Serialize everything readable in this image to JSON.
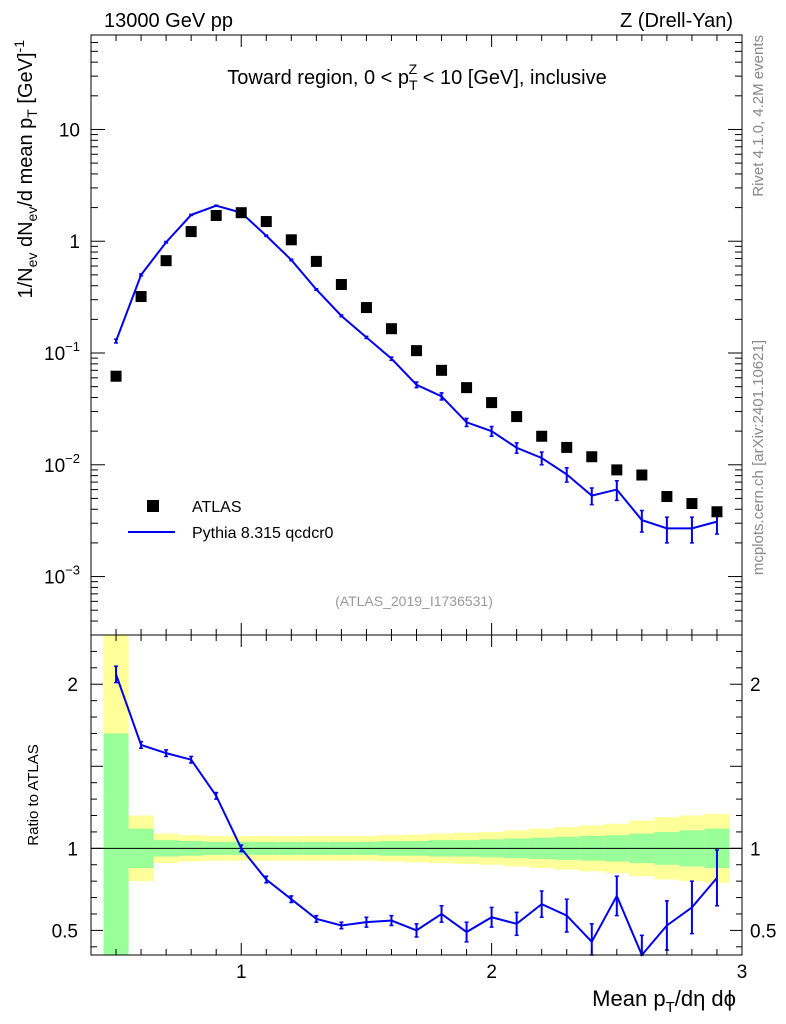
{
  "header": {
    "left": "13000 GeV pp",
    "right": "Z (Drell-Yan)"
  },
  "side_labels": {
    "rivet": "Rivet 4.1.0,  4.2M events",
    "mcplots": "mcplots.cern.ch [arXiv:2401.10621]"
  },
  "chart_data": {
    "type": "scatter",
    "title": "Toward region, 0 < p_T^Z < 10 [GeV], inclusive",
    "title_parts": {
      "pre": "Toward region, 0 < p",
      "sub": "T",
      "sup": "Z",
      "post": " < 10 [GeV], inclusive"
    },
    "analysis_tag": "(ATLAS_2019_I1736531)",
    "xlabel": "Mean p_T/dη dϕ",
    "xlabel_parts": {
      "pre": "Mean p",
      "sub": "T",
      "post": "/dη dϕ"
    },
    "ylabel": "1/N_ev dN_ev/d mean p_T [GeV]^-1",
    "ylabel_parts": {
      "a": "1/N",
      "a_sub": "ev",
      "b": " dN",
      "b_sub": "ev",
      "c": "/d mean p",
      "c_sub": "T",
      "d": " [GeV]",
      "d_sup": "-1"
    },
    "ratio_ylabel": "Ratio to ATLAS",
    "xlim": [
      0.4,
      3.0
    ],
    "ylim": [
      0.0003,
      70
    ],
    "yscale": "log",
    "ratio_ylim": [
      0.35,
      2.3
    ],
    "x_ticks": [
      1,
      2,
      3
    ],
    "x_tick_labels": [
      "1",
      "2",
      "3"
    ],
    "y_ticks": [
      0.001,
      0.01,
      0.1,
      1,
      10
    ],
    "y_tick_labels": [
      {
        "base": "10",
        "exp": "−3"
      },
      {
        "base": "10",
        "exp": "−2"
      },
      {
        "base": "10",
        "exp": "−1"
      },
      {
        "base": "1",
        "exp": ""
      },
      {
        "base": "10",
        "exp": ""
      }
    ],
    "ratio_ticks": [
      0.5,
      1,
      2
    ],
    "ratio_tick_labels": [
      "0.5",
      "1",
      "2"
    ],
    "legend": {
      "position": "lower-left",
      "entries": [
        "ATLAS",
        "Pythia 8.315 qcdcr0"
      ]
    },
    "series": [
      {
        "name": "ATLAS",
        "color": "#000000",
        "marker": "square",
        "x": [
          0.5,
          0.6,
          0.7,
          0.8,
          0.9,
          1.0,
          1.1,
          1.2,
          1.3,
          1.4,
          1.5,
          1.6,
          1.7,
          1.8,
          1.9,
          2.0,
          2.1,
          2.2,
          2.3,
          2.4,
          2.5,
          2.6,
          2.7,
          2.8,
          2.9
        ],
        "y": [
          0.062,
          0.32,
          0.67,
          1.22,
          1.7,
          1.8,
          1.5,
          1.03,
          0.66,
          0.41,
          0.255,
          0.165,
          0.105,
          0.07,
          0.049,
          0.036,
          0.027,
          0.018,
          0.0143,
          0.0118,
          0.009,
          0.0081,
          0.0052,
          0.0045,
          0.0038
        ]
      },
      {
        "name": "Pythia 8.315 qcdcr0",
        "color": "#0000ee",
        "marker": "line",
        "x": [
          0.5,
          0.6,
          0.7,
          0.8,
          0.9,
          1.0,
          1.1,
          1.2,
          1.3,
          1.4,
          1.5,
          1.6,
          1.7,
          1.8,
          1.9,
          2.0,
          2.1,
          2.2,
          2.3,
          2.4,
          2.5,
          2.6,
          2.7,
          2.8,
          2.9
        ],
        "y": [
          0.128,
          0.5,
          0.98,
          1.72,
          2.08,
          1.8,
          1.12,
          0.68,
          0.37,
          0.215,
          0.138,
          0.089,
          0.052,
          0.041,
          0.024,
          0.02,
          0.0142,
          0.0115,
          0.0082,
          0.0053,
          0.006,
          0.0032,
          0.0027,
          0.0027,
          0.0031
        ],
        "yerr": [
          0.005,
          0.01,
          0.015,
          0.02,
          0.02,
          0.02,
          0.015,
          0.01,
          0.006,
          0.004,
          0.003,
          0.003,
          0.003,
          0.003,
          0.002,
          0.002,
          0.0015,
          0.0015,
          0.0012,
          0.0009,
          0.0012,
          0.0007,
          0.0007,
          0.0007,
          0.0007
        ],
        "ratio": [
          2.06,
          1.63,
          1.58,
          1.54,
          1.32,
          1.0,
          0.81,
          0.69,
          0.57,
          0.53,
          0.55,
          0.56,
          0.5,
          0.6,
          0.49,
          0.58,
          0.54,
          0.66,
          0.59,
          0.43,
          0.71,
          0.33,
          0.53,
          0.64,
          0.82
        ],
        "ratio_err": [
          0.05,
          0.02,
          0.02,
          0.02,
          0.02,
          0.02,
          0.02,
          0.02,
          0.02,
          0.02,
          0.03,
          0.03,
          0.04,
          0.05,
          0.06,
          0.06,
          0.07,
          0.08,
          0.1,
          0.11,
          0.12,
          0.14,
          0.15,
          0.16,
          0.17
        ]
      }
    ],
    "ratio_bands": {
      "x_edges": [
        0.45,
        0.55,
        0.65,
        0.75,
        0.85,
        0.95,
        1.05,
        1.15,
        1.25,
        1.35,
        1.45,
        1.55,
        1.65,
        1.75,
        1.85,
        1.95,
        2.05,
        2.15,
        2.25,
        2.35,
        2.45,
        2.55,
        2.65,
        2.75,
        2.85,
        2.95
      ],
      "inner_color": "#99ff99",
      "outer_color": "#ffff99",
      "inner_half": [
        0.7,
        0.12,
        0.05,
        0.045,
        0.04,
        0.04,
        0.04,
        0.04,
        0.04,
        0.04,
        0.04,
        0.045,
        0.045,
        0.05,
        0.05,
        0.055,
        0.06,
        0.065,
        0.07,
        0.075,
        0.08,
        0.09,
        0.1,
        0.11,
        0.12
      ],
      "outer_half": [
        1.3,
        0.2,
        0.09,
        0.08,
        0.075,
        0.075,
        0.075,
        0.075,
        0.075,
        0.075,
        0.075,
        0.08,
        0.085,
        0.09,
        0.095,
        0.1,
        0.11,
        0.12,
        0.13,
        0.14,
        0.15,
        0.17,
        0.19,
        0.2,
        0.21
      ]
    }
  }
}
